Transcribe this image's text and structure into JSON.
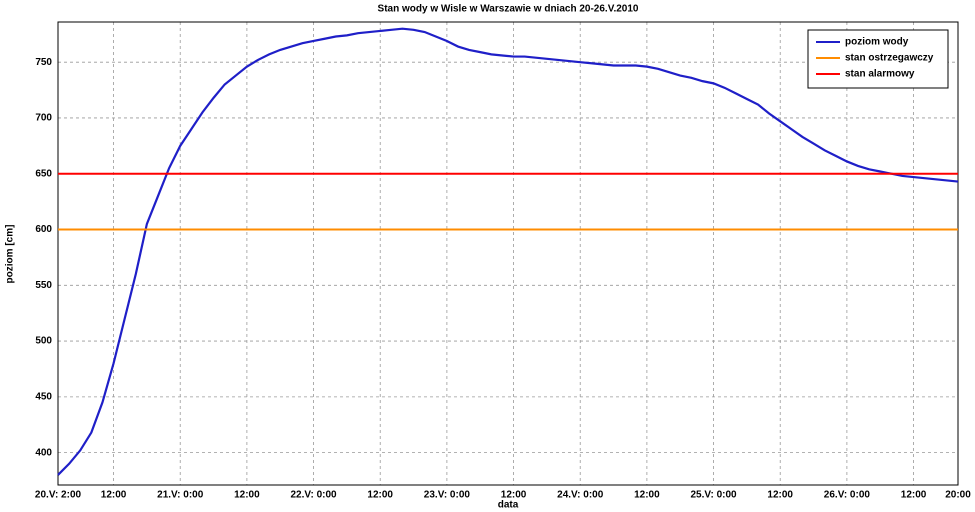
{
  "chart_data": {
    "type": "line",
    "title": "Stan wody w Wisle w Warszawie w dniach 20-26.V.2010",
    "x_label": "data",
    "y_label": "poziom [cm]",
    "x": [
      2,
      4,
      6,
      8,
      10,
      12,
      14,
      16,
      18,
      20,
      22,
      24,
      26,
      28,
      30,
      32,
      34,
      36,
      38,
      40,
      42,
      44,
      46,
      48,
      50,
      52,
      54,
      56,
      58,
      60,
      62,
      64,
      66,
      68,
      70,
      72,
      74,
      76,
      78,
      80,
      82,
      84,
      86,
      88,
      90,
      92,
      94,
      96,
      98,
      100,
      102,
      104,
      106,
      108,
      110,
      112,
      114,
      116,
      118,
      120,
      122,
      124,
      126,
      128,
      130,
      132,
      134,
      136,
      138,
      140,
      142,
      144,
      146,
      148,
      150,
      152,
      154,
      156,
      158,
      160,
      162,
      164
    ],
    "series": [
      {
        "name": "poziom wody",
        "color": "#1f1fc8",
        "values": [
          380,
          390,
          402,
          418,
          445,
          480,
          520,
          560,
          605,
          630,
          655,
          675,
          690,
          705,
          718,
          730,
          738,
          746,
          752,
          757,
          761,
          764,
          767,
          769,
          771,
          773,
          774,
          776,
          777,
          778,
          779,
          780,
          779,
          777,
          773,
          769,
          764,
          761,
          759,
          757,
          756,
          755,
          755,
          754,
          753,
          752,
          751,
          750,
          749,
          748,
          747,
          747,
          747,
          746,
          744,
          741,
          738,
          736,
          733,
          731,
          727,
          722,
          717,
          712,
          704,
          697,
          690,
          683,
          677,
          671,
          666,
          661,
          657,
          654,
          652,
          650,
          648,
          647,
          646,
          645,
          644,
          643
        ]
      },
      {
        "name": "stan ostrzegawczy",
        "color": "#ff8c00",
        "y": 600
      },
      {
        "name": "stan alarmowy",
        "color": "#ff0000",
        "y": 650
      }
    ],
    "xlim": [
      2,
      164
    ],
    "xticks": [
      {
        "value": 2,
        "label": "20.V: 2:00"
      },
      {
        "value": 12,
        "label": "12:00"
      },
      {
        "value": 24,
        "label": "21.V: 0:00"
      },
      {
        "value": 36,
        "label": "12:00"
      },
      {
        "value": 48,
        "label": "22.V: 0:00"
      },
      {
        "value": 60,
        "label": "12:00"
      },
      {
        "value": 72,
        "label": "23.V: 0:00"
      },
      {
        "value": 84,
        "label": "12:00"
      },
      {
        "value": 96,
        "label": "24.V: 0:00"
      },
      {
        "value": 108,
        "label": "12:00"
      },
      {
        "value": 120,
        "label": "25.V: 0:00"
      },
      {
        "value": 132,
        "label": "12:00"
      },
      {
        "value": 144,
        "label": "26.V: 0:00"
      },
      {
        "value": 156,
        "label": "12:00"
      },
      {
        "value": 164,
        "label": "20:00"
      }
    ],
    "ylim": [
      371,
      786
    ],
    "yticks": [
      400,
      450,
      500,
      550,
      600,
      650,
      700,
      750
    ],
    "grid": true,
    "legend": "upper right"
  }
}
